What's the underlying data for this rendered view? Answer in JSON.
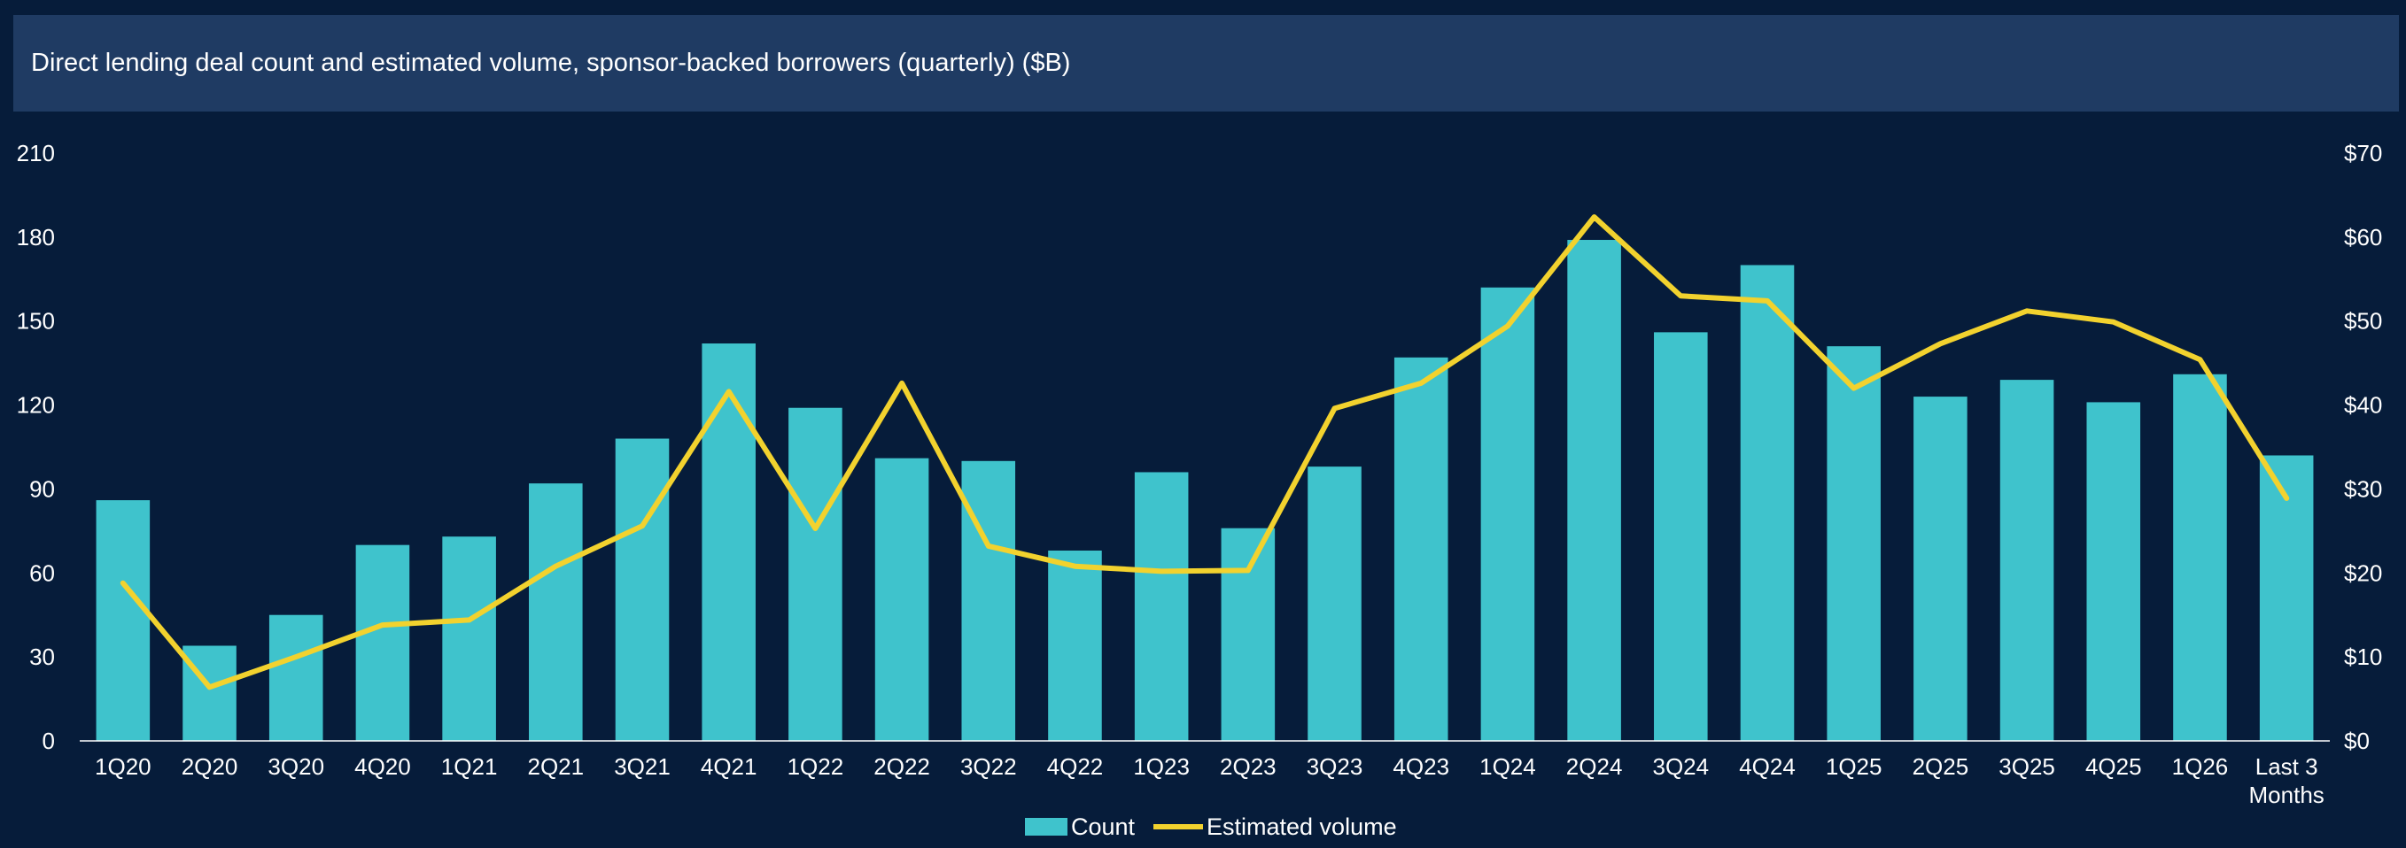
{
  "title": "Direct lending deal count and estimated volume, sponsor-backed borrowers (quarterly) ($B)",
  "colors": {
    "background": "#061c3a",
    "title_bar": "#1f3b63",
    "bar": "#3fc3cc",
    "line": "#f2d22e",
    "axis": "#ffffff"
  },
  "chart_data": {
    "type": "bar",
    "categories": [
      "1Q20",
      "2Q20",
      "3Q20",
      "4Q20",
      "1Q21",
      "2Q21",
      "3Q21",
      "4Q21",
      "1Q22",
      "2Q22",
      "3Q22",
      "4Q22",
      "1Q23",
      "2Q23",
      "3Q23",
      "4Q23",
      "1Q24",
      "2Q24",
      "3Q24",
      "4Q24",
      "1Q25",
      "2Q25",
      "3Q25",
      "4Q25",
      "1Q26",
      "Last 3 Months"
    ],
    "series": [
      {
        "name": "Count",
        "type": "bar",
        "axis": "left",
        "values": [
          86,
          34,
          45,
          70,
          73,
          92,
          108,
          142,
          119,
          101,
          100,
          68,
          96,
          76,
          98,
          137,
          162,
          179,
          146,
          170,
          141,
          123,
          129,
          121,
          131,
          102
        ]
      },
      {
        "name": "Estimated volume",
        "type": "line",
        "axis": "right",
        "values": [
          18.8,
          6.4,
          10,
          13.8,
          14.4,
          20.8,
          25.6,
          41.6,
          25.3,
          42.6,
          23.2,
          20.8,
          20.2,
          20.3,
          39.6,
          42.6,
          49.4,
          62.4,
          53,
          52.4,
          42,
          47.3,
          51.2,
          49.9,
          45.4,
          28.9
        ]
      }
    ],
    "y_left": {
      "ylim": [
        0,
        210
      ],
      "ticks": [
        "0",
        "30",
        "60",
        "90",
        "120",
        "150",
        "180",
        "210"
      ]
    },
    "y_right": {
      "ylim": [
        0,
        70
      ],
      "ticks": [
        "$0",
        "$10",
        "$20",
        "$30",
        "$40",
        "$50",
        "$60",
        "$70"
      ]
    },
    "grid": false,
    "legend": "bottom-center"
  }
}
